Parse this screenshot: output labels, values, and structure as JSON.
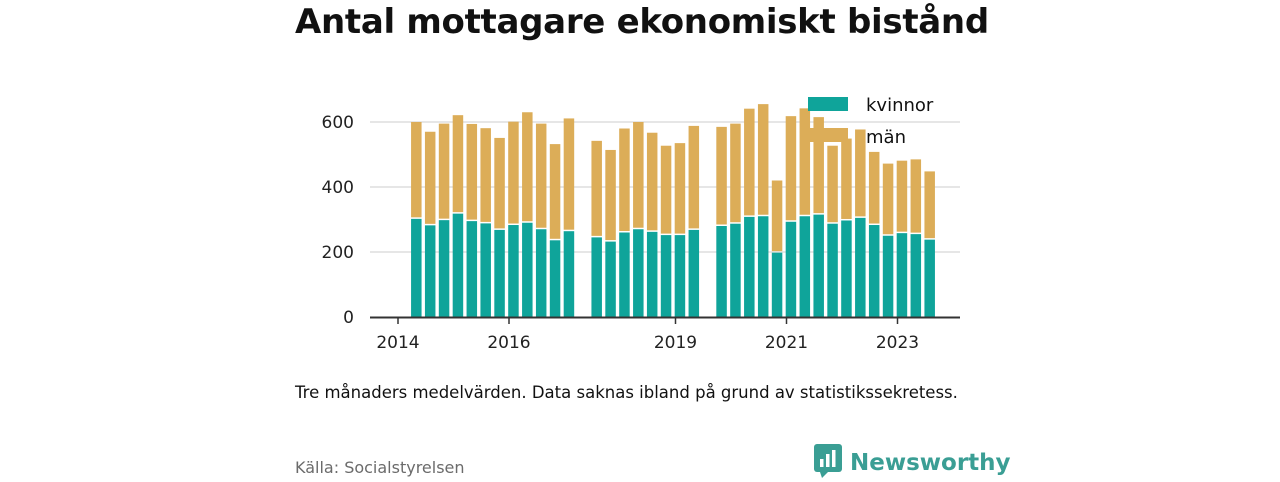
{
  "title": "Antal mottagare ekonomiskt bistånd",
  "note": "Tre månaders medelvärden. Data saknas ibland på grund av statistikssekretess.",
  "source": "Källa: Socialstyrelsen",
  "brand": {
    "name": "Newsworthy",
    "icon": "newsworthy-logo-icon"
  },
  "colors": {
    "kvinnor": "#0fa49a",
    "man": "#dcad58",
    "grid": "#dddddd",
    "axis": "#333333"
  },
  "chart_data": {
    "type": "bar",
    "stacked": true,
    "x_ticks": [
      2014,
      2016,
      2019,
      2021,
      2023
    ],
    "y_ticks": [
      0,
      200,
      400,
      600
    ],
    "ylim": [
      0,
      700
    ],
    "xlim": [
      2014.0,
      2024.75
    ],
    "grid": "horizontal",
    "legend_position": "top-right",
    "x": [
      2014.33,
      2014.58,
      2014.83,
      2015.08,
      2015.33,
      2015.58,
      2015.83,
      2016.08,
      2016.33,
      2016.58,
      2016.83,
      2017.08,
      2017.58,
      2017.83,
      2018.08,
      2018.33,
      2018.58,
      2018.83,
      2019.08,
      2019.33,
      2019.83,
      2020.08,
      2020.33,
      2020.58,
      2020.83,
      2021.08,
      2021.33,
      2021.58,
      2021.83,
      2022.08,
      2022.33,
      2022.58,
      2022.83,
      2023.08,
      2023.33,
      2023.58
    ],
    "series": [
      {
        "name": "kvinnor",
        "values": [
          302,
          282,
          298,
          318,
          295,
          288,
          268,
          283,
          290,
          270,
          236,
          264,
          245,
          232,
          260,
          270,
          262,
          252,
          252,
          268,
          280,
          287,
          308,
          310,
          198,
          293,
          310,
          315,
          287,
          297,
          305,
          283,
          250,
          258,
          255,
          238
        ]
      },
      {
        "name": "män",
        "values": [
          298,
          288,
          297,
          303,
          299,
          293,
          283,
          318,
          340,
          325,
          296,
          347,
          297,
          282,
          320,
          330,
          305,
          275,
          283,
          320,
          305,
          308,
          333,
          345,
          222,
          325,
          332,
          300,
          240,
          252,
          272,
          225,
          222,
          223,
          230,
          210
        ]
      }
    ],
    "legend": [
      "kvinnor",
      "män"
    ]
  }
}
